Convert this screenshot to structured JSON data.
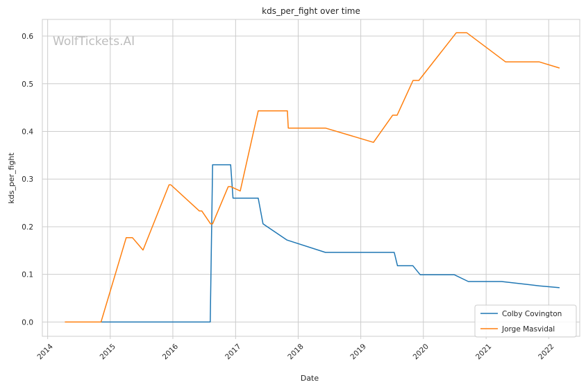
{
  "chart_data": {
    "type": "line",
    "title": "kds_per_fight over time",
    "xlabel": "Date",
    "ylabel": "kds_per_fight",
    "watermark": "WolfTickets.AI",
    "xlim": [
      "2013-12-01",
      "2022-07-01"
    ],
    "ylim": [
      -0.03,
      0.635
    ],
    "xticks": [
      "2014",
      "2015",
      "2016",
      "2017",
      "2018",
      "2019",
      "2020",
      "2021",
      "2022"
    ],
    "yticks": [
      "0.0",
      "0.1",
      "0.2",
      "0.3",
      "0.4",
      "0.5",
      "0.6"
    ],
    "grid": true,
    "legend_position": "lower right",
    "series": [
      {
        "name": "Colby Covington",
        "color": "#1f77b4",
        "x": [
          "2014-11-08",
          "2016-08-06",
          "2016-08-20",
          "2016-12-03",
          "2016-12-17",
          "2017-05-13",
          "2017-06-10",
          "2017-10-28",
          "2018-06-09",
          "2019-07-15",
          "2019-08-03",
          "2019-11-01",
          "2019-12-14",
          "2020-06-30",
          "2020-09-19",
          "2021-04-01",
          "2021-11-06",
          "2022-03-05"
        ],
        "y": [
          0.0,
          0.0,
          0.33,
          0.33,
          0.26,
          0.26,
          0.206,
          0.172,
          0.146,
          0.146,
          0.118,
          0.118,
          0.099,
          0.099,
          0.085,
          0.085,
          0.076,
          0.072
        ]
      },
      {
        "name": "Jorge Masvidal",
        "color": "#ff7f0e",
        "x": [
          "2014-04-11",
          "2014-11-08",
          "2015-04-04",
          "2015-05-10",
          "2015-07-11",
          "2015-12-10",
          "2015-12-20",
          "2016-06-04",
          "2016-06-18",
          "2016-08-08",
          "2016-08-20",
          "2016-11-19",
          "2016-12-04",
          "2017-01-28",
          "2017-05-13",
          "2017-10-30",
          "2017-11-04",
          "2018-06-09",
          "2019-03-16",
          "2019-07-06",
          "2019-08-01",
          "2019-11-02",
          "2019-12-06",
          "2020-07-11",
          "2020-09-10",
          "2021-04-24",
          "2021-11-06",
          "2022-03-05"
        ],
        "y": [
          0.0,
          0.0,
          0.177,
          0.177,
          0.151,
          0.288,
          0.288,
          0.233,
          0.233,
          0.206,
          0.206,
          0.284,
          0.284,
          0.275,
          0.443,
          0.443,
          0.407,
          0.407,
          0.377,
          0.434,
          0.434,
          0.507,
          0.507,
          0.607,
          0.607,
          0.546,
          0.546,
          0.533
        ]
      }
    ]
  }
}
